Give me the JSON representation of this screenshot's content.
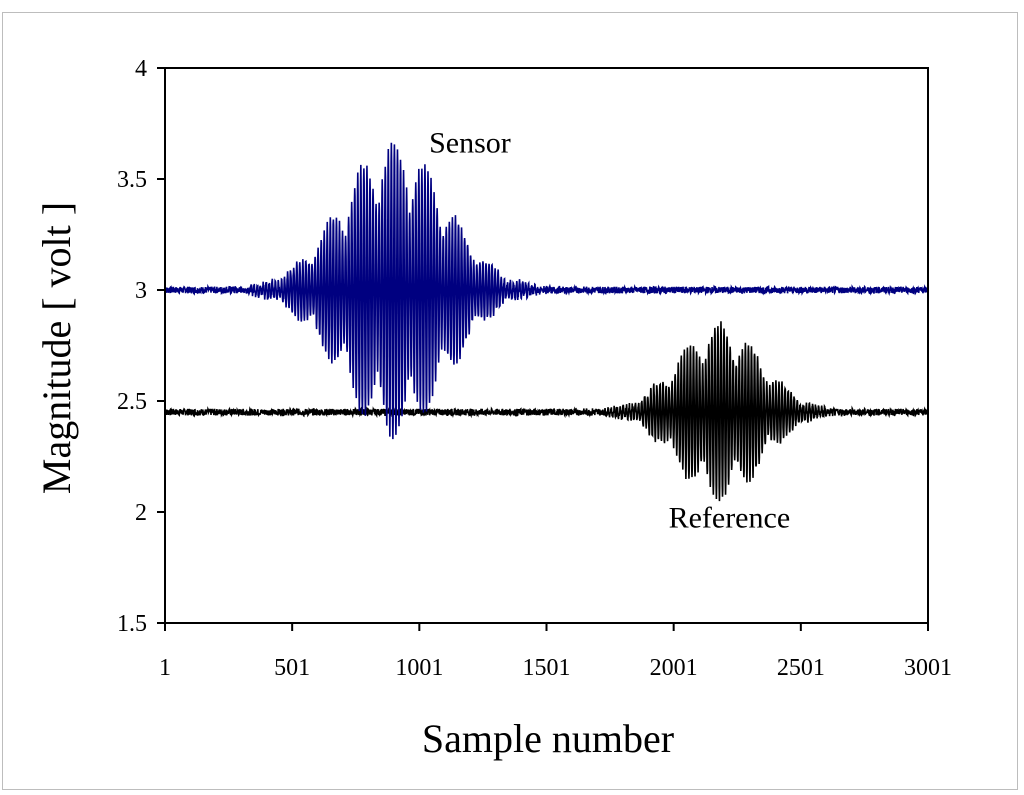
{
  "chart_data": {
    "type": "line",
    "title": "",
    "xlabel": "Sample number",
    "ylabel": "Magnitude [ volt ]",
    "xlim": [
      1,
      3001
    ],
    "ylim": [
      1.5,
      4
    ],
    "x_ticks": [
      "1",
      "501",
      "1001",
      "1501",
      "2001",
      "2501",
      "3001"
    ],
    "y_ticks": [
      "1.5",
      "2",
      "2.5",
      "3",
      "3.5",
      "4"
    ],
    "grid": false,
    "legend": "none",
    "annotations": [
      {
        "text": "Sensor",
        "x": 1200,
        "y": 3.62
      },
      {
        "text": "Reference",
        "x": 2220,
        "y": 1.93
      }
    ],
    "series": [
      {
        "label": "Sensor",
        "color": "#000080",
        "baseline": 3.0,
        "peak_amplitude": 0.67,
        "envelope_center": 900,
        "envelope_width": 290,
        "carrier_period": 12,
        "start": 1,
        "end": 3001
      },
      {
        "label": "Reference",
        "color": "#000000",
        "baseline": 2.45,
        "peak_amplitude": 0.4,
        "envelope_center": 2180,
        "envelope_width": 230,
        "carrier_period": 12,
        "start": 1,
        "end": 3001
      }
    ]
  }
}
